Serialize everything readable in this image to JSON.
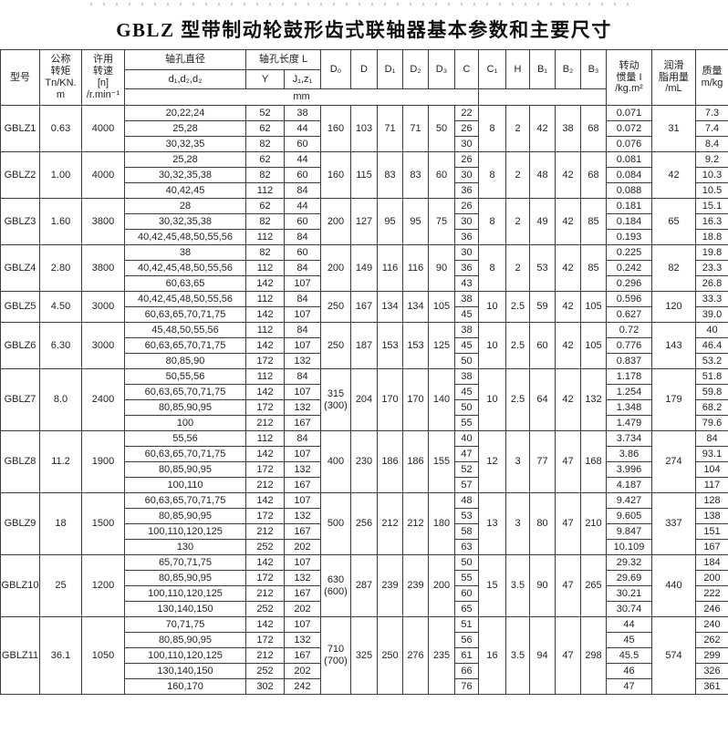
{
  "title": "GBLZ 型带制动轮鼓形齿式联轴器基本参数和主要尺寸",
  "header": {
    "model": "型号",
    "torque": "公称\n转矩\nTn/KN.\nm",
    "speed": "许用\n转速\n[n]\n/r.min⁻¹",
    "bore_diameter": "轴孔直径",
    "bore_diameter_sub": "d₁,d₂,d₂",
    "bore_length": "轴孔长度 L",
    "bore_length_y": "Y",
    "bore_length_j": "J₁,z₁",
    "unit": "mm",
    "dims": [
      "D₀",
      "D",
      "D₁",
      "D₂",
      "D₃",
      "C",
      "C₁",
      "H",
      "B₁",
      "B₂",
      "B₃"
    ],
    "inertia": "转动\n惯量 I\n/kg.m²",
    "grease": "润滑\n脂用量\n/mL",
    "mass": "质量\nm/kg"
  },
  "rows": [
    {
      "model": "GBLZ1",
      "torque": "0.63",
      "speed": "4000",
      "d0": "160",
      "d": "103",
      "d1": "71",
      "d2": "71",
      "d3": "50",
      "c1": "8",
      "h": "2",
      "b1": "42",
      "b2": "38",
      "b3": "68",
      "grease": "31",
      "subrows": [
        {
          "bores": "20,22,24",
          "y": "52",
          "j": "38",
          "c": "22",
          "inertia": "0.071",
          "mass": "7.3"
        },
        {
          "bores": "25,28",
          "y": "62",
          "j": "44",
          "c": "26",
          "inertia": "0.072",
          "mass": "7.4"
        },
        {
          "bores": "30,32,35",
          "y": "82",
          "j": "60",
          "c": "30",
          "inertia": "0.076",
          "mass": "8.4"
        }
      ]
    },
    {
      "model": "GBLZ2",
      "torque": "1.00",
      "speed": "4000",
      "d0": "160",
      "d": "115",
      "d1": "83",
      "d2": "83",
      "d3": "60",
      "c1": "8",
      "h": "2",
      "b1": "48",
      "b2": "42",
      "b3": "68",
      "grease": "42",
      "subrows": [
        {
          "bores": "25,28",
          "y": "62",
          "j": "44",
          "c": "26",
          "inertia": "0.081",
          "mass": "9.2"
        },
        {
          "bores": "30,32,35,38",
          "y": "82",
          "j": "60",
          "c": "30",
          "inertia": "0.084",
          "mass": "10.3"
        },
        {
          "bores": "40,42,45",
          "y": "112",
          "j": "84",
          "c": "36",
          "inertia": "0.088",
          "mass": "10.5"
        }
      ]
    },
    {
      "model": "GBLZ3",
      "torque": "1.60",
      "speed": "3800",
      "d0": "200",
      "d": "127",
      "d1": "95",
      "d2": "95",
      "d3": "75",
      "c1": "8",
      "h": "2",
      "b1": "49",
      "b2": "42",
      "b3": "85",
      "grease": "65",
      "subrows": [
        {
          "bores": "28",
          "y": "62",
          "j": "44",
          "c": "26",
          "inertia": "0.181",
          "mass": "15.1"
        },
        {
          "bores": "30,32,35,38",
          "y": "82",
          "j": "60",
          "c": "30",
          "inertia": "0.184",
          "mass": "16.3"
        },
        {
          "bores": "40,42,45,48,50,55,56",
          "y": "112",
          "j": "84",
          "c": "36",
          "inertia": "0.193",
          "mass": "18.8"
        }
      ]
    },
    {
      "model": "GBLZ4",
      "torque": "2.80",
      "speed": "3800",
      "d0": "200",
      "d": "149",
      "d1": "116",
      "d2": "116",
      "d3": "90",
      "c1": "8",
      "h": "2",
      "b1": "53",
      "b2": "42",
      "b3": "85",
      "grease": "82",
      "subrows": [
        {
          "bores": "38",
          "y": "82",
          "j": "60",
          "c": "30",
          "inertia": "0.225",
          "mass": "19.8"
        },
        {
          "bores": "40,42,45,48,50,55,56",
          "y": "112",
          "j": "84",
          "c": "36",
          "inertia": "0.242",
          "mass": "23.3"
        },
        {
          "bores": "60,63,65",
          "y": "142",
          "j": "107",
          "c": "43",
          "inertia": "0.296",
          "mass": "26.8"
        }
      ]
    },
    {
      "model": "GBLZ5",
      "torque": "4.50",
      "speed": "3000",
      "d0": "250",
      "d": "167",
      "d1": "134",
      "d2": "134",
      "d3": "105",
      "c1": "10",
      "h": "2.5",
      "b1": "59",
      "b2": "42",
      "b3": "105",
      "grease": "120",
      "subrows": [
        {
          "bores": "40,42,45,48,50,55,56",
          "y": "112",
          "j": "84",
          "c": "38",
          "inertia": "0.596",
          "mass": "33.3"
        },
        {
          "bores": "60,63,65,70,71,75",
          "y": "142",
          "j": "107",
          "c": "45",
          "inertia": "0.627",
          "mass": "39.0"
        }
      ]
    },
    {
      "model": "GBLZ6",
      "torque": "6.30",
      "speed": "3000",
      "d0": "250",
      "d": "187",
      "d1": "153",
      "d2": "153",
      "d3": "125",
      "c1": "10",
      "h": "2.5",
      "b1": "60",
      "b2": "42",
      "b3": "105",
      "grease": "143",
      "subrows": [
        {
          "bores": "45,48,50,55,56",
          "y": "112",
          "j": "84",
          "c": "38",
          "inertia": "0.72",
          "mass": "40"
        },
        {
          "bores": "60,63,65,70,71,75",
          "y": "142",
          "j": "107",
          "c": "45",
          "inertia": "0.776",
          "mass": "46.4"
        },
        {
          "bores": "80,85,90",
          "y": "172",
          "j": "132",
          "c": "50",
          "inertia": "0.837",
          "mass": "53.2"
        }
      ]
    },
    {
      "model": "GBLZ7",
      "torque": "8.0",
      "speed": "2400",
      "d0": "315\n(300)",
      "d": "204",
      "d1": "170",
      "d2": "170",
      "d3": "140",
      "c1": "10",
      "h": "2.5",
      "b1": "64",
      "b2": "42",
      "b3": "132",
      "grease": "179",
      "subrows": [
        {
          "bores": "50,55,56",
          "y": "112",
          "j": "84",
          "c": "38",
          "inertia": "1.178",
          "mass": "51.8"
        },
        {
          "bores": "60,63,65,70,71,75",
          "y": "142",
          "j": "107",
          "c": "45",
          "inertia": "1.254",
          "mass": "59.8"
        },
        {
          "bores": "80,85,90,95",
          "y": "172",
          "j": "132",
          "c": "50",
          "inertia": "1.348",
          "mass": "68.2"
        },
        {
          "bores": "100",
          "y": "212",
          "j": "167",
          "c": "55",
          "inertia": "1.479",
          "mass": "79.6"
        }
      ]
    },
    {
      "model": "GBLZ8",
      "torque": "11.2",
      "speed": "1900",
      "d0": "400",
      "d": "230",
      "d1": "186",
      "d2": "186",
      "d3": "155",
      "c1": "12",
      "h": "3",
      "b1": "77",
      "b2": "47",
      "b3": "168",
      "grease": "274",
      "subrows": [
        {
          "bores": "55,56",
          "y": "112",
          "j": "84",
          "c": "40",
          "inertia": "3.734",
          "mass": "84"
        },
        {
          "bores": "60,63,65,70,71,75",
          "y": "142",
          "j": "107",
          "c": "47",
          "inertia": "3.86",
          "mass": "93.1"
        },
        {
          "bores": "80,85,90,95",
          "y": "172",
          "j": "132",
          "c": "52",
          "inertia": "3.996",
          "mass": "104"
        },
        {
          "bores": "100,110",
          "y": "212",
          "j": "167",
          "c": "57",
          "inertia": "4.187",
          "mass": "117"
        }
      ]
    },
    {
      "model": "GBLZ9",
      "torque": "18",
      "speed": "1500",
      "d0": "500",
      "d": "256",
      "d1": "212",
      "d2": "212",
      "d3": "180",
      "c1": "13",
      "h": "3",
      "b1": "80",
      "b2": "47",
      "b3": "210",
      "grease": "337",
      "subrows": [
        {
          "bores": "60,63,65,70,71,75",
          "y": "142",
          "j": "107",
          "c": "48",
          "inertia": "9.427",
          "mass": "128"
        },
        {
          "bores": "80,85,90,95",
          "y": "172",
          "j": "132",
          "c": "53",
          "inertia": "9.605",
          "mass": "138"
        },
        {
          "bores": "100,110,120,125",
          "y": "212",
          "j": "167",
          "c": "58",
          "inertia": "9.847",
          "mass": "151"
        },
        {
          "bores": "130",
          "y": "252",
          "j": "202",
          "c": "63",
          "inertia": "10.109",
          "mass": "167"
        }
      ]
    },
    {
      "model": "GBLZ10",
      "torque": "25",
      "speed": "1200",
      "d0": "630\n(600)",
      "d": "287",
      "d1": "239",
      "d2": "239",
      "d3": "200",
      "c1": "15",
      "h": "3.5",
      "b1": "90",
      "b2": "47",
      "b3": "265",
      "grease": "440",
      "subrows": [
        {
          "bores": "65,70,71,75",
          "y": "142",
          "j": "107",
          "c": "50",
          "inertia": "29.32",
          "mass": "184"
        },
        {
          "bores": "80,85,90,95",
          "y": "172",
          "j": "132",
          "c": "55",
          "inertia": "29.69",
          "mass": "200"
        },
        {
          "bores": "100,110,120,125",
          "y": "212",
          "j": "167",
          "c": "60",
          "inertia": "30.21",
          "mass": "222"
        },
        {
          "bores": "130,140,150",
          "y": "252",
          "j": "202",
          "c": "65",
          "inertia": "30.74",
          "mass": "246"
        }
      ]
    },
    {
      "model": "GBLZ11",
      "torque": "36.1",
      "speed": "1050",
      "d0": "710\n(700)",
      "d": "325",
      "d1": "250",
      "d2": "276",
      "d3": "235",
      "c1": "16",
      "h": "3.5",
      "b1": "94",
      "b2": "47",
      "b3": "298",
      "grease": "574",
      "subrows": [
        {
          "bores": "70,71,75",
          "y": "142",
          "j": "107",
          "c": "51",
          "inertia": "44",
          "mass": "240"
        },
        {
          "bores": "80,85,90,95",
          "y": "172",
          "j": "132",
          "c": "56",
          "inertia": "45",
          "mass": "262"
        },
        {
          "bores": "100,110,120,125",
          "y": "212",
          "j": "167",
          "c": "61",
          "inertia": "45.5",
          "mass": "299"
        },
        {
          "bores": "130,140,150",
          "y": "252",
          "j": "202",
          "c": "66",
          "inertia": "46",
          "mass": "326"
        },
        {
          "bores": "160,170",
          "y": "302",
          "j": "242",
          "c": "76",
          "inertia": "47",
          "mass": "361"
        }
      ]
    }
  ]
}
